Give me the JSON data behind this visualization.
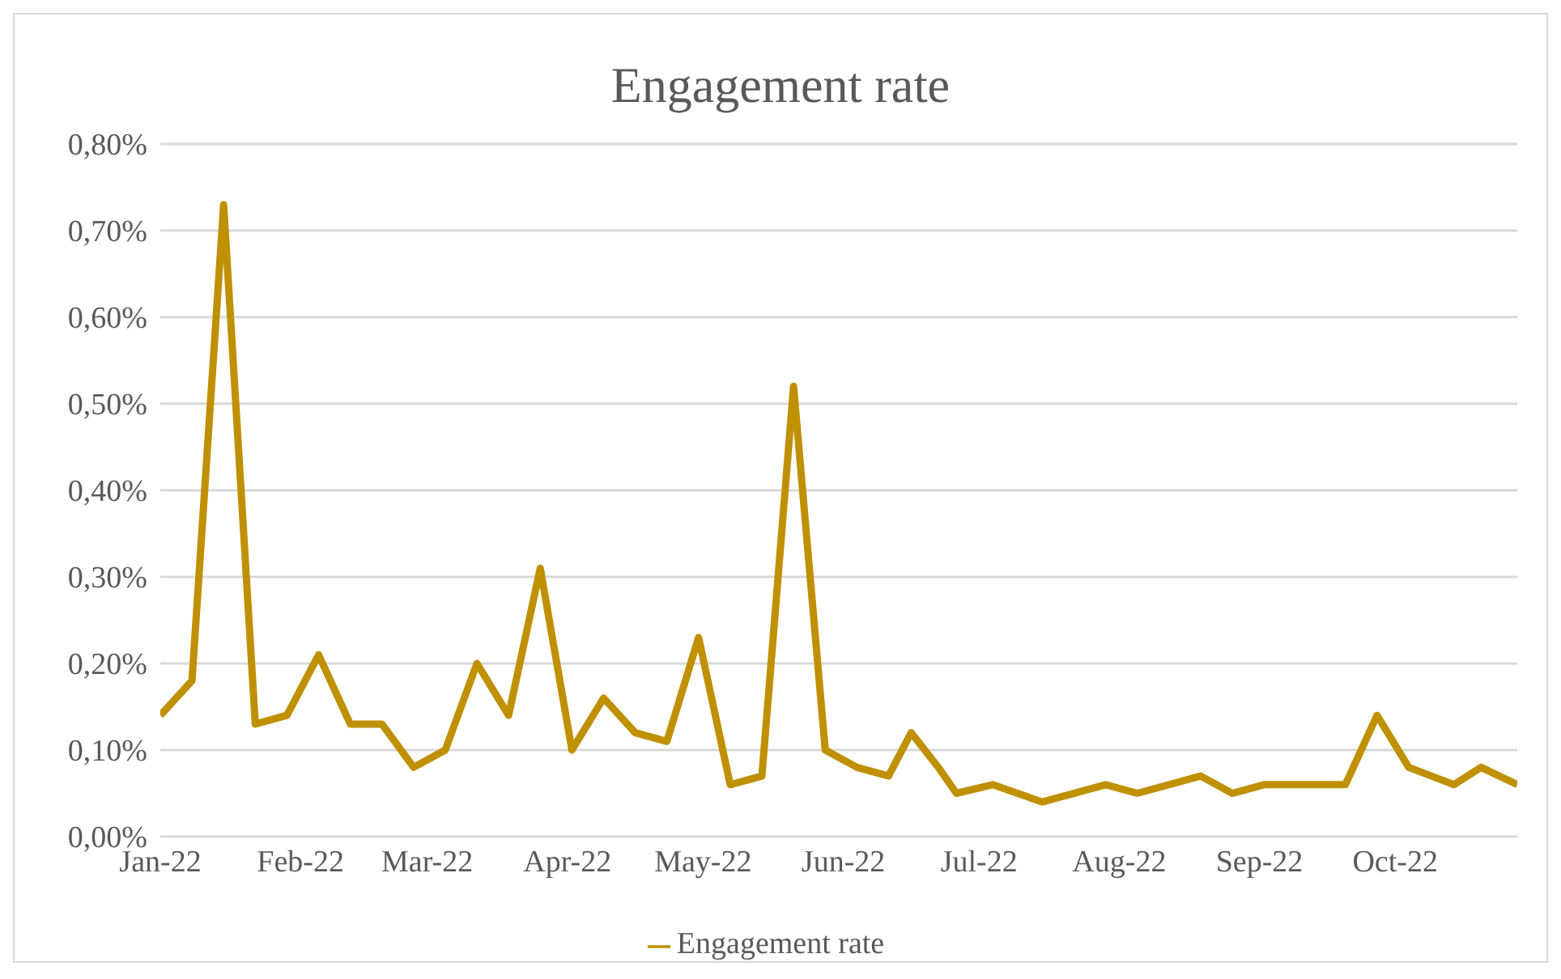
{
  "chart_data": {
    "type": "line",
    "title": "Engagement rate",
    "x": [
      "2022-01-01",
      "2022-01-08",
      "2022-01-15",
      "2022-01-22",
      "2022-01-29",
      "2022-02-05",
      "2022-02-12",
      "2022-02-19",
      "2022-02-26",
      "2022-03-05",
      "2022-03-12",
      "2022-03-19",
      "2022-03-26",
      "2022-04-02",
      "2022-04-09",
      "2022-04-16",
      "2022-04-23",
      "2022-04-30",
      "2022-05-07",
      "2022-05-14",
      "2022-05-21",
      "2022-05-28",
      "2022-06-04",
      "2022-06-11",
      "2022-06-16",
      "2022-06-22",
      "2022-06-26",
      "2022-07-04",
      "2022-07-15",
      "2022-07-29",
      "2022-08-05",
      "2022-08-19",
      "2022-08-26",
      "2022-09-02",
      "2022-09-20",
      "2022-09-27",
      "2022-10-04",
      "2022-10-14",
      "2022-10-20",
      "2022-10-28"
    ],
    "series": [
      {
        "name": "Engagement rate",
        "color": "#bf9000",
        "values": [
          0.14,
          0.18,
          0.73,
          0.13,
          0.14,
          0.21,
          0.13,
          0.13,
          0.08,
          0.1,
          0.2,
          0.14,
          0.31,
          0.1,
          0.16,
          0.12,
          0.11,
          0.23,
          0.06,
          0.07,
          0.52,
          0.1,
          0.08,
          0.07,
          0.12,
          0.08,
          0.05,
          0.06,
          0.04,
          0.06,
          0.05,
          0.07,
          0.05,
          0.06,
          0.06,
          0.14,
          0.08,
          0.06,
          0.08,
          0.06
        ]
      }
    ],
    "xlim": [
      "2022-01-01",
      "2022-10-28"
    ],
    "xticks": [
      {
        "value": "2022-01-01",
        "label": "Jan-22"
      },
      {
        "value": "2022-02-01",
        "label": "Feb-22"
      },
      {
        "value": "2022-03-01",
        "label": "Mar-22"
      },
      {
        "value": "2022-04-01",
        "label": "Apr-22"
      },
      {
        "value": "2022-05-01",
        "label": "May-22"
      },
      {
        "value": "2022-06-01",
        "label": "Jun-22"
      },
      {
        "value": "2022-07-01",
        "label": "Jul-22"
      },
      {
        "value": "2022-08-01",
        "label": "Aug-22"
      },
      {
        "value": "2022-09-01",
        "label": "Sep-22"
      },
      {
        "value": "2022-10-01",
        "label": "Oct-22"
      }
    ],
    "ylim": [
      0,
      0.8
    ],
    "yticks": [
      {
        "value": 0,
        "label": "0,00%"
      },
      {
        "value": 0.1,
        "label": "0,10%"
      },
      {
        "value": 0.2,
        "label": "0,20%"
      },
      {
        "value": 0.3,
        "label": "0,30%"
      },
      {
        "value": 0.4,
        "label": "0,40%"
      },
      {
        "value": 0.5,
        "label": "0,50%"
      },
      {
        "value": 0.6,
        "label": "0,60%"
      },
      {
        "value": 0.7,
        "label": "0,70%"
      },
      {
        "value": 0.8,
        "label": "0,80%"
      }
    ],
    "grid": "y",
    "legend": "bottom",
    "marker": "none",
    "line_style": "solid"
  }
}
